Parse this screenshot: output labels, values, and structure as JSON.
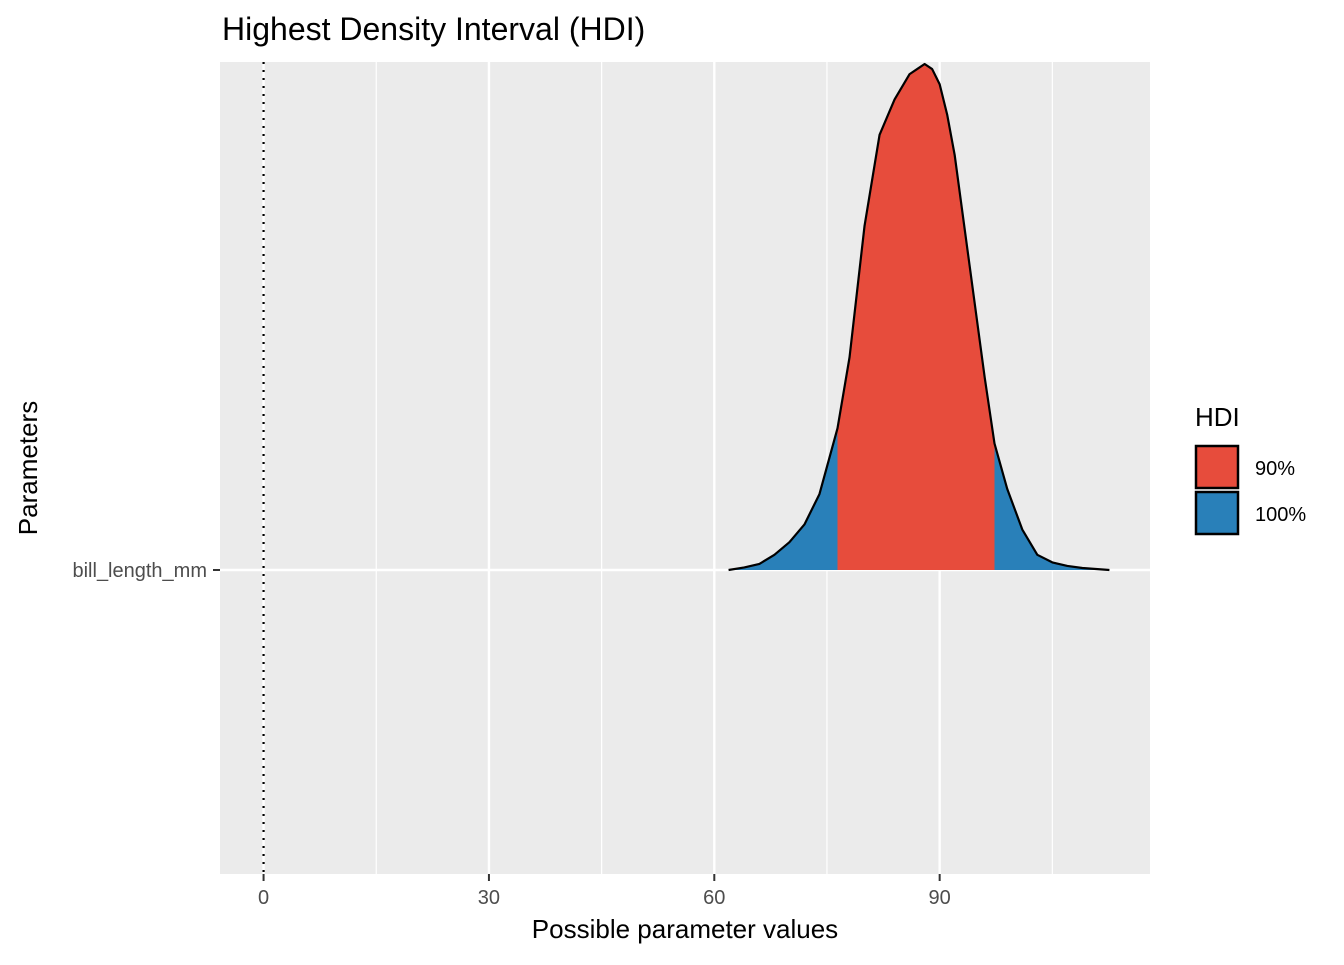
{
  "chart_data": {
    "type": "area",
    "title": "Highest Density Interval (HDI)",
    "xlabel": "Possible parameter values",
    "ylabel": "Parameters",
    "xlim": [
      -5.8,
      118
    ],
    "x_ticks": [
      0,
      30,
      60,
      90
    ],
    "y_categories": [
      "bill_length_mm"
    ],
    "reference_line_x": 0,
    "grid": true,
    "legend": {
      "title": "HDI",
      "placement": "right",
      "entries": [
        {
          "label": "90%",
          "color": "#E74C3C"
        },
        {
          "label": "100%",
          "color": "#2980B9"
        }
      ]
    },
    "hdi": [
      {
        "level": "90%",
        "low": 76.4,
        "high": 97.3,
        "color": "#E74C3C"
      },
      {
        "level": "100%",
        "low": 61.9,
        "high": 112.6,
        "color": "#2980B9"
      }
    ],
    "density": {
      "parameter": "bill_length_mm",
      "x": [
        61.9,
        64,
        66,
        68,
        70,
        72,
        74,
        76.4,
        78,
        80,
        82,
        84,
        86,
        87,
        88,
        89,
        90,
        91,
        92,
        94,
        96,
        97.3,
        99,
        101,
        103,
        105,
        107,
        109,
        112.6
      ],
      "relative_density": [
        0.0,
        0.005,
        0.012,
        0.03,
        0.055,
        0.09,
        0.15,
        0.28,
        0.42,
        0.68,
        0.86,
        0.93,
        0.98,
        0.99,
        1.0,
        0.99,
        0.96,
        0.9,
        0.82,
        0.6,
        0.38,
        0.25,
        0.16,
        0.08,
        0.03,
        0.015,
        0.008,
        0.004,
        0.0
      ]
    }
  }
}
